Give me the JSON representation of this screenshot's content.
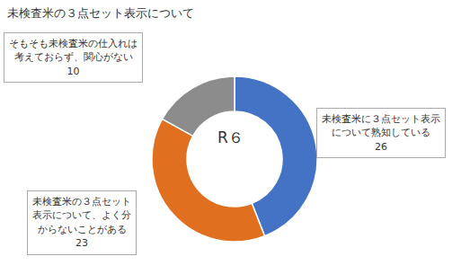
{
  "chart_data": {
    "type": "pie",
    "title": "未検査米の３点セット表示について",
    "categories": [
      "未検査米に３点セット表示\nについて熟知している",
      "未検査米の３点セット\n表示について、よく分\nからないことがある",
      "そもそも未検査米の仕入れは\n考えておらず、関心がない"
    ],
    "values": [
      26,
      23,
      10
    ],
    "colors": [
      "#4472C4",
      "#E07020",
      "#8C8C8C"
    ],
    "data_labels": true,
    "annotations": [
      "R６"
    ]
  }
}
